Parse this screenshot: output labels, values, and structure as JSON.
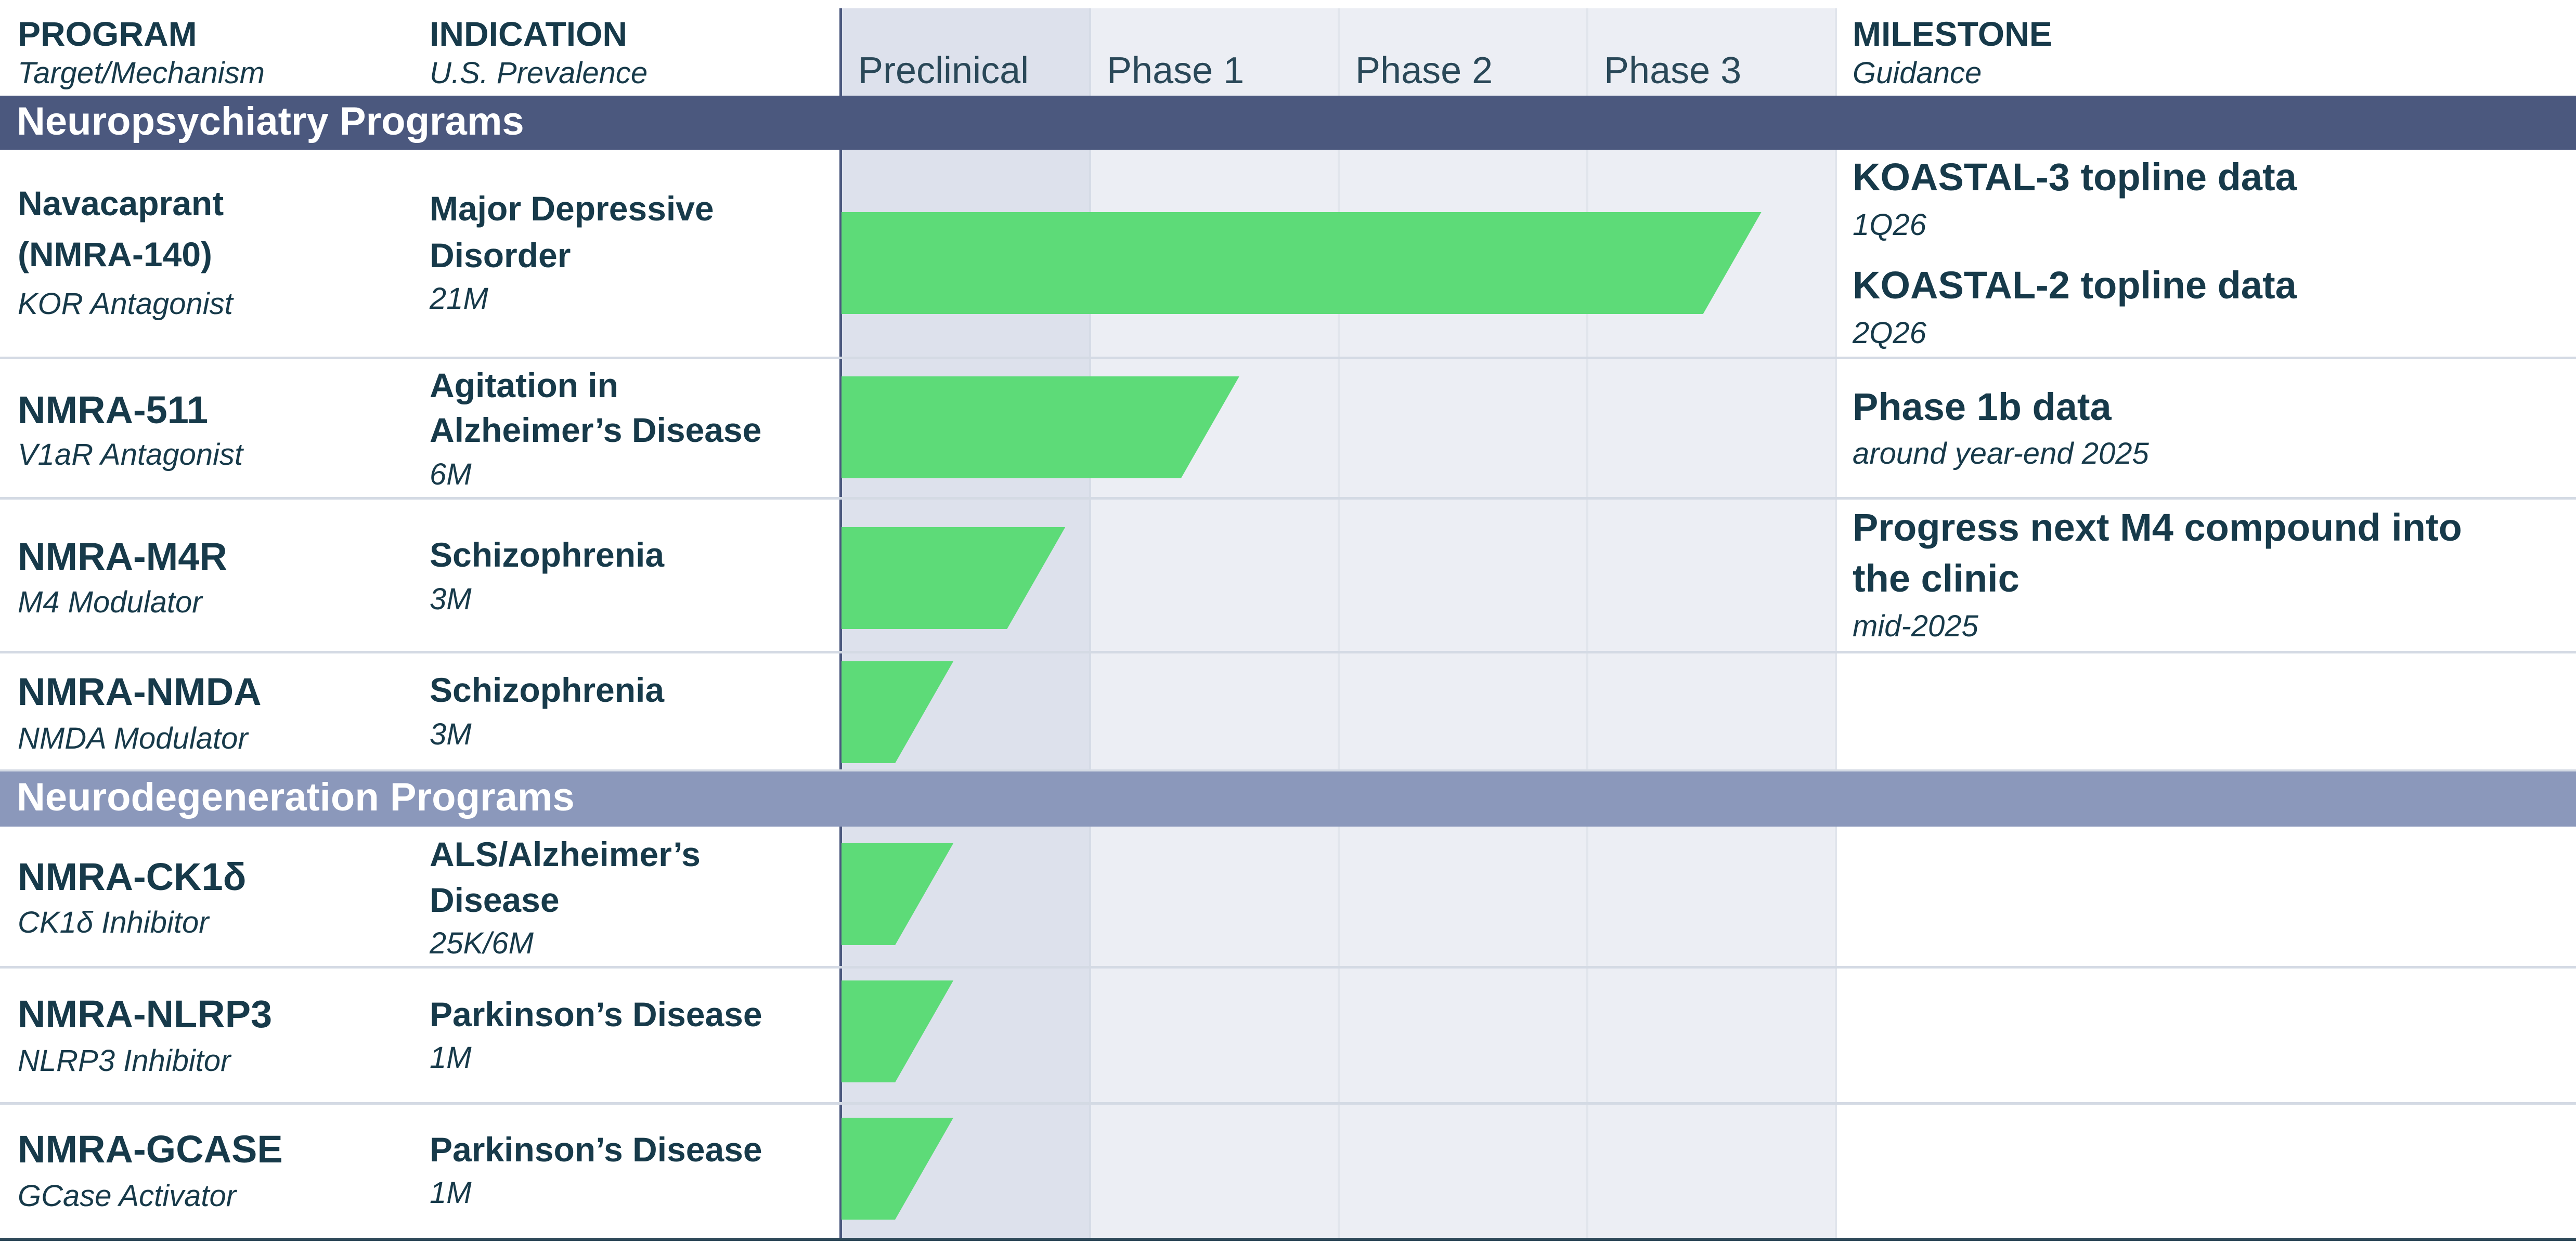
{
  "header": {
    "program_title": "PROGRAM",
    "program_sub": "Target/Mechanism",
    "indication_title": "INDICATION",
    "indication_sub": "U.S. Prevalence",
    "milestone_title": "MILESTONE",
    "milestone_sub": "Guidance"
  },
  "sections": {
    "neuropsychiatry": "Neuropsychiatry Programs",
    "neurodegeneration": "Neurodegeneration Programs"
  },
  "colors": {
    "bar": "#5ddb78",
    "band_dark": "#4b587e",
    "band_light": "#8b98bb",
    "text": "#173a4a"
  },
  "programs": [
    {
      "name": "Navacaprant (NMRA-140)",
      "name_line1": "Navacaprant",
      "name_line2": "(NMRA-140)",
      "mechanism": "KOR Antagonist",
      "indication_line1": "Major Depressive",
      "indication_line2": "Disorder",
      "prevalence": "21M",
      "milestones": [
        {
          "title": "KOASTAL-3 topline data",
          "guidance": "1Q26"
        },
        {
          "title": "KOASTAL-2 topline data",
          "guidance": "2Q26"
        }
      ]
    },
    {
      "name": "NMRA-511",
      "mechanism": "V1aR Antagonist",
      "indication_line1": "Agitation in",
      "indication_line2": "Alzheimer’s Disease",
      "prevalence": "6M",
      "milestones": [
        {
          "title": "Phase 1b data",
          "guidance": "around year-end 2025"
        }
      ]
    },
    {
      "name": "NMRA-M4R",
      "mechanism": "M4 Modulator",
      "indication_line1": "Schizophrenia",
      "prevalence": "3M",
      "milestones": [
        {
          "title_line1": "Progress next M4 compound into",
          "title_line2": "the clinic",
          "guidance": "mid-2025"
        }
      ]
    },
    {
      "name": "NMRA-NMDA",
      "mechanism": "NMDA Modulator",
      "indication_line1": "Schizophrenia",
      "prevalence": "3M",
      "milestones": []
    },
    {
      "name": "NMRA-CK1δ",
      "mechanism": "CK1δ Inhibitor",
      "indication_line1": "ALS/Alzheimer’s",
      "indication_line2": "Disease",
      "prevalence": "25K/6M",
      "milestones": []
    },
    {
      "name": "NMRA-NLRP3",
      "mechanism": "NLRP3 Inhibitor",
      "indication_line1": "Parkinson’s Disease",
      "prevalence": "1M",
      "milestones": []
    },
    {
      "name": "NMRA-GCASE",
      "mechanism": "GCase Activator",
      "indication_line1": "Parkinson’s Disease",
      "prevalence": "1M",
      "milestones": []
    }
  ],
  "chart_data": {
    "type": "bar",
    "orientation": "horizontal",
    "stages": [
      "Preclinical",
      "Phase 1",
      "Phase 2",
      "Phase 3"
    ],
    "categories": [
      "Navacaprant (NMRA-140)",
      "NMRA-511",
      "NMRA-M4R",
      "NMRA-NMDA",
      "NMRA-CK1δ",
      "NMRA-NLRP3",
      "NMRA-GCASE"
    ],
    "values": [
      3.7,
      1.6,
      0.9,
      0.45,
      0.45,
      0.45,
      0.45
    ],
    "xlim": [
      0,
      4
    ],
    "groups": [
      {
        "name": "Neuropsychiatry Programs",
        "categories": [
          "Navacaprant (NMRA-140)",
          "NMRA-511",
          "NMRA-M4R",
          "NMRA-NMDA"
        ]
      },
      {
        "name": "Neurodegeneration Programs",
        "categories": [
          "NMRA-CK1δ",
          "NMRA-NLRP3",
          "NMRA-GCASE"
        ]
      }
    ]
  }
}
